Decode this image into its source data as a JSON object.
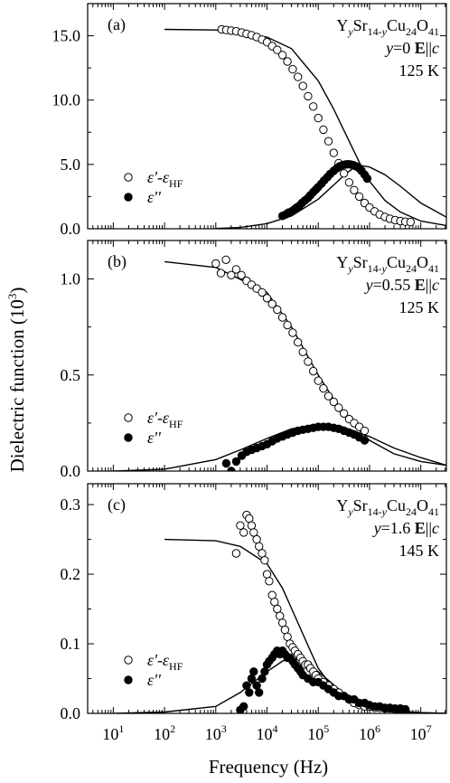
{
  "figure": {
    "ylabel_main": "Dielectric function (10",
    "ylabel_exp": "3",
    "ylabel_close": ")",
    "xlabel": "Frequency (Hz)",
    "x_ticks": [
      "1",
      "2",
      "3",
      "4",
      "5",
      "6",
      "7"
    ]
  },
  "chart_data": [
    {
      "type": "scatter",
      "panel": "(a)",
      "compound": {
        "a": "Y",
        "b": "y",
        "c": "Sr",
        "d": "14-",
        "e": "y",
        "f": "Cu",
        "g": "24",
        "h": "O",
        "i": "41"
      },
      "condition": {
        "var": "y",
        "val": "=0",
        "vec": "E",
        "par": "||",
        "axis": "c"
      },
      "temperature": "125 K",
      "xscale": "log",
      "xlim": [
        3.16,
        31600000
      ],
      "ylim": [
        0,
        17.5
      ],
      "y_ticks": [
        "0.0",
        "5.0",
        "10.0",
        "15.0"
      ],
      "y_tick_values": [
        0,
        5,
        10,
        15
      ],
      "legend": {
        "open": "ε'-εHF",
        "open_main": "ε'-ε",
        "open_sub": "HF",
        "filled": "ε''",
        "placement": "left-middle"
      },
      "series": [
        {
          "name": "ε'-εHF",
          "marker": "open-circle",
          "x": [
            1300,
            1600,
            2000,
            2500,
            3200,
            4000,
            5000,
            6300,
            8000,
            10000,
            12600,
            15800,
            20000,
            25000,
            31600,
            40000,
            50000,
            63000,
            80000,
            100000,
            126000,
            158000,
            200000,
            250000,
            316000,
            400000,
            500000,
            630000,
            800000,
            1000000,
            1260000,
            1580000,
            2000000,
            2500000,
            3160000,
            4000000,
            5000000,
            6300000
          ],
          "y": [
            15.5,
            15.45,
            15.4,
            15.35,
            15.25,
            15.15,
            15.05,
            14.9,
            14.7,
            14.5,
            14.2,
            13.9,
            13.5,
            13.0,
            12.4,
            11.8,
            11.1,
            10.3,
            9.5,
            8.6,
            7.7,
            6.8,
            5.9,
            5.1,
            4.3,
            3.6,
            3.0,
            2.5,
            2.0,
            1.65,
            1.35,
            1.1,
            0.92,
            0.78,
            0.67,
            0.6,
            0.55,
            0.52
          ]
        },
        {
          "name": "ε''",
          "marker": "filled-circle",
          "x": [
            20000,
            23000,
            26000,
            30000,
            34000,
            38000,
            43000,
            48000,
            55000,
            63000,
            70000,
            80000,
            90000,
            100000,
            115000,
            130000,
            150000,
            170000,
            200000,
            230000,
            260000,
            300000,
            340000,
            380000,
            430000,
            480000,
            550000,
            630000,
            700000,
            800000,
            900000
          ],
          "y": [
            1.0,
            1.1,
            1.25,
            1.35,
            1.5,
            1.65,
            1.8,
            2.0,
            2.2,
            2.4,
            2.6,
            2.85,
            3.05,
            3.25,
            3.5,
            3.75,
            4.0,
            4.25,
            4.5,
            4.7,
            4.85,
            4.95,
            5.0,
            5.02,
            5.0,
            4.95,
            4.85,
            4.7,
            4.5,
            4.2,
            3.9
          ]
        },
        {
          "name": "",
          "marker": "line",
          "role": "fit-real",
          "x": [
            100,
            1000,
            10000,
            30000,
            100000,
            200000,
            400000,
            700000,
            1000000,
            2000000,
            4000000,
            10000000,
            31600000
          ],
          "y": [
            15.5,
            15.45,
            14.9,
            14.0,
            11.5,
            9.3,
            6.8,
            4.8,
            3.7,
            2.2,
            1.3,
            0.6,
            0.25
          ]
        },
        {
          "name": "",
          "marker": "line",
          "role": "fit-imag",
          "x": [
            1000,
            3000,
            10000,
            30000,
            100000,
            200000,
            350000,
            500000,
            700000,
            1000000,
            2000000,
            4000000,
            10000000,
            31600000
          ],
          "y": [
            0.02,
            0.1,
            0.4,
            1.0,
            2.3,
            3.4,
            4.3,
            4.75,
            4.9,
            4.8,
            4.2,
            3.3,
            2.0,
            0.9
          ]
        }
      ]
    },
    {
      "type": "scatter",
      "panel": "(b)",
      "compound": {
        "a": "Y",
        "b": "y",
        "c": "Sr",
        "d": "14-",
        "e": "y",
        "f": "Cu",
        "g": "24",
        "h": "O",
        "i": "41"
      },
      "condition": {
        "var": "y",
        "val": "=0.55",
        "vec": "E",
        "par": "||",
        "axis": "c"
      },
      "temperature": "125 K",
      "xscale": "log",
      "xlim": [
        3.16,
        31600000
      ],
      "ylim": [
        0,
        1.2
      ],
      "y_ticks": [
        "0.0",
        "0.5",
        "1.0"
      ],
      "y_tick_values": [
        0,
        0.5,
        1.0
      ],
      "legend": {
        "open": "ε'-εHF",
        "open_main": "ε'-ε",
        "open_sub": "HF",
        "filled": "ε''",
        "placement": "left-bottom"
      },
      "series": [
        {
          "name": "ε'-εHF",
          "marker": "open-circle",
          "x": [
            1000,
            1260,
            1580,
            2000,
            2500,
            3160,
            4000,
            5000,
            6300,
            8000,
            10000,
            12600,
            15800,
            20000,
            25000,
            31600,
            40000,
            50000,
            63000,
            80000,
            100000,
            126000,
            158000,
            200000,
            250000,
            316000,
            400000,
            500000,
            630000,
            800000
          ],
          "y": [
            1.08,
            1.03,
            1.1,
            1.02,
            1.05,
            1.02,
            0.99,
            0.97,
            0.95,
            0.93,
            0.9,
            0.87,
            0.84,
            0.8,
            0.76,
            0.72,
            0.67,
            0.62,
            0.57,
            0.52,
            0.47,
            0.43,
            0.39,
            0.36,
            0.33,
            0.3,
            0.27,
            0.25,
            0.23,
            0.21
          ]
        },
        {
          "name": "ε''",
          "marker": "filled-circle",
          "x": [
            1600,
            2000,
            2500,
            3200,
            4000,
            5000,
            6300,
            8000,
            10000,
            12600,
            15800,
            20000,
            25000,
            31600,
            40000,
            50000,
            63000,
            80000,
            100000,
            126000,
            158000,
            200000,
            250000,
            316000,
            400000,
            500000,
            630000,
            800000
          ],
          "y": [
            0.04,
            0.0,
            0.05,
            0.08,
            0.1,
            0.11,
            0.12,
            0.13,
            0.14,
            0.155,
            0.17,
            0.18,
            0.19,
            0.2,
            0.21,
            0.215,
            0.22,
            0.225,
            0.23,
            0.23,
            0.23,
            0.225,
            0.22,
            0.21,
            0.2,
            0.19,
            0.175,
            0.16
          ]
        },
        {
          "name": "",
          "marker": "line",
          "role": "fit-real",
          "x": [
            100,
            1000,
            10000,
            30000,
            100000,
            300000,
            1000000,
            3000000,
            10000000,
            31600000
          ],
          "y": [
            1.09,
            1.06,
            0.93,
            0.75,
            0.5,
            0.3,
            0.16,
            0.09,
            0.05,
            0.03
          ]
        },
        {
          "name": "",
          "marker": "line",
          "role": "fit-imag",
          "x": [
            10,
            100,
            1000,
            3000,
            10000,
            30000,
            100000,
            300000,
            1000000,
            3000000,
            10000000,
            31600000
          ],
          "y": [
            0.0,
            0.01,
            0.06,
            0.11,
            0.17,
            0.22,
            0.245,
            0.23,
            0.18,
            0.12,
            0.07,
            0.03
          ]
        }
      ]
    },
    {
      "type": "scatter",
      "panel": "(c)",
      "compound": {
        "a": "Y",
        "b": "y",
        "c": "Sr",
        "d": "14-",
        "e": "y",
        "f": "Cu",
        "g": "24",
        "h": "O",
        "i": "41"
      },
      "condition": {
        "var": "y",
        "val": "=1.6",
        "vec": "E",
        "par": "||",
        "axis": "c"
      },
      "temperature": "145 K",
      "xscale": "log",
      "xlim": [
        3.16,
        31600000
      ],
      "ylim": [
        0,
        0.33
      ],
      "y_ticks": [
        "0.0",
        "0.1",
        "0.2",
        "0.3"
      ],
      "y_tick_values": [
        0,
        0.1,
        0.2,
        0.3
      ],
      "legend": {
        "open": "ε'-εHF",
        "open_main": "ε'-ε",
        "open_sub": "HF",
        "filled": "ε''",
        "placement": "left-bottom"
      },
      "series": [
        {
          "name": "ε'-εHF",
          "marker": "open-circle",
          "x": [
            2500,
            3000,
            3500,
            4000,
            4500,
            5000,
            5500,
            6300,
            7000,
            8000,
            9000,
            10000,
            11000,
            12600,
            14000,
            15800,
            17800,
            20000,
            22400,
            25000,
            28000,
            31600,
            35000,
            40000,
            45000,
            50000,
            56000,
            63000,
            70000,
            80000,
            90000,
            100000,
            126000,
            158000,
            200000,
            250000,
            316000,
            400000,
            500000,
            630000,
            800000,
            1000000,
            1260000,
            1580000,
            2000000,
            2500000,
            3160000,
            4000000,
            5000000
          ],
          "y": [
            0.23,
            0.27,
            0.26,
            0.285,
            0.28,
            0.27,
            0.26,
            0.25,
            0.24,
            0.23,
            0.22,
            0.2,
            0.19,
            0.17,
            0.16,
            0.15,
            0.14,
            0.13,
            0.12,
            0.11,
            0.1,
            0.095,
            0.09,
            0.085,
            0.08,
            0.075,
            0.07,
            0.07,
            0.065,
            0.06,
            0.055,
            0.05,
            0.045,
            0.04,
            0.035,
            0.03,
            0.025,
            0.02,
            0.015,
            0.012,
            0.01,
            0.01,
            0.008,
            0.008,
            0.007,
            0.007,
            0.006,
            0.006,
            0.005
          ]
        },
        {
          "name": "ε''",
          "marker": "filled-circle",
          "x": [
            3000,
            3500,
            4000,
            4500,
            5000,
            5500,
            6300,
            7000,
            8000,
            9000,
            10000,
            11000,
            12600,
            14000,
            15800,
            17800,
            20000,
            22400,
            25000,
            28000,
            31600,
            35000,
            40000,
            45000,
            50000,
            63000,
            80000,
            100000,
            126000,
            158000,
            200000,
            250000,
            316000,
            400000,
            500000,
            630000,
            800000,
            1000000,
            1260000,
            1580000,
            2000000,
            2500000,
            3160000,
            4000000,
            5000000
          ],
          "y": [
            0.005,
            0.01,
            0.04,
            0.03,
            0.05,
            0.06,
            0.04,
            0.03,
            0.05,
            0.06,
            0.07,
            0.075,
            0.08,
            0.085,
            0.09,
            0.085,
            0.09,
            0.085,
            0.08,
            0.08,
            0.075,
            0.07,
            0.065,
            0.06,
            0.055,
            0.05,
            0.045,
            0.045,
            0.04,
            0.035,
            0.03,
            0.025,
            0.025,
            0.02,
            0.02,
            0.015,
            0.015,
            0.012,
            0.01,
            0.01,
            0.008,
            0.008,
            0.007,
            0.007,
            0.006
          ]
        },
        {
          "name": "",
          "marker": "line",
          "role": "fit-real",
          "x": [
            100,
            1000,
            3000,
            10000,
            20000,
            40000,
            70000,
            100000,
            200000,
            500000,
            1000000,
            3000000,
            10000000,
            31600000
          ],
          "y": [
            0.25,
            0.248,
            0.24,
            0.215,
            0.18,
            0.13,
            0.09,
            0.065,
            0.035,
            0.012,
            0.005,
            0.002,
            0.001,
            0.0
          ]
        },
        {
          "name": "",
          "marker": "line",
          "role": "fit-imag",
          "x": [
            10,
            100,
            1000,
            3000,
            10000,
            20000,
            30000,
            50000,
            100000,
            300000,
            1000000,
            3000000,
            10000000,
            31600000
          ],
          "y": [
            0.0,
            0.002,
            0.01,
            0.03,
            0.06,
            0.075,
            0.08,
            0.075,
            0.06,
            0.03,
            0.012,
            0.004,
            0.001,
            0.0
          ]
        }
      ]
    }
  ]
}
